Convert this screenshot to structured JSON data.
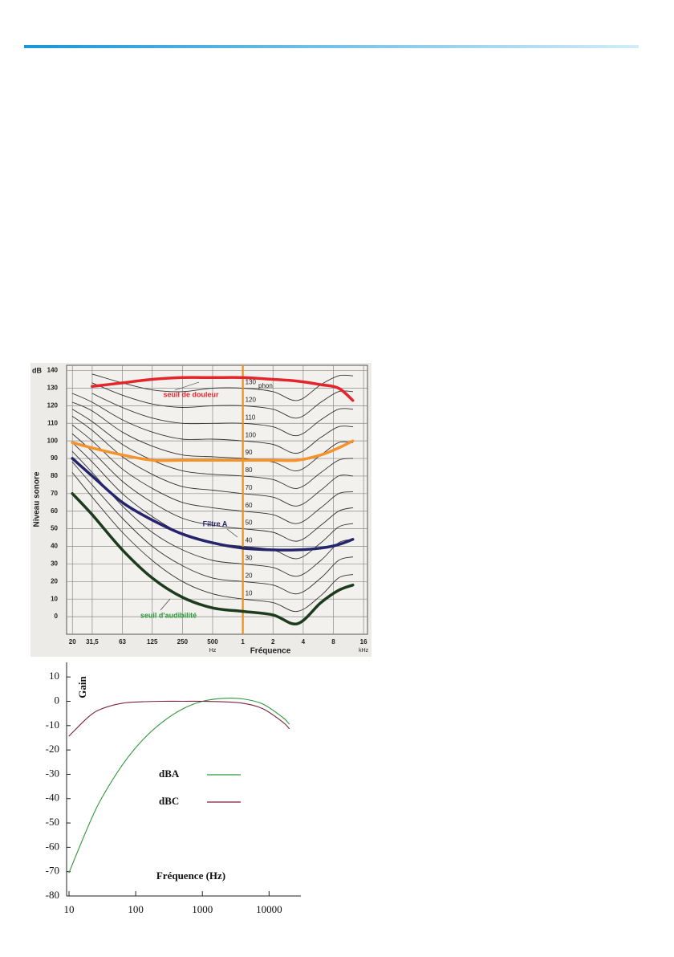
{
  "chart_data": [
    {
      "type": "line",
      "log_x": true,
      "ylabel": "Niveau sonore",
      "yunit": "dB",
      "xlabel": "Fréquence",
      "hz_label": "Hz",
      "khz_label": "kHz",
      "xlim": [
        17.5,
        17500
      ],
      "ylim": [
        -10,
        143
      ],
      "yticks": [
        0,
        10,
        20,
        30,
        40,
        50,
        60,
        70,
        80,
        90,
        100,
        110,
        120,
        130,
        140
      ],
      "xticks": [
        20,
        {
          "value": 31.5,
          "label": "31,5"
        },
        63,
        125,
        250,
        500,
        {
          "value": 1000,
          "label": "1"
        },
        {
          "value": 2000,
          "label": "2"
        },
        {
          "value": 4000,
          "label": "4"
        },
        {
          "value": 8000,
          "label": "8"
        },
        {
          "value": 16000,
          "label": "16"
        }
      ],
      "grid": true,
      "vline": 1000,
      "vline_color": "#e8901e",
      "unit_label": "phon",
      "x": [
        20,
        31.5,
        63,
        125,
        250,
        500,
        1000,
        2000,
        3500,
        6000,
        9000,
        12500
      ],
      "series": [
        {
          "name": "10",
          "color": "#333333",
          "values": [
            82,
            68,
            48,
            32,
            20,
            13,
            10,
            8,
            3,
            12,
            22,
            24
          ]
        },
        {
          "name": "20",
          "color": "#333333",
          "values": [
            88,
            75,
            56,
            40,
            29,
            22,
            20,
            18,
            13,
            22,
            32,
            34
          ]
        },
        {
          "name": "30",
          "color": "#333333",
          "values": [
            94,
            82,
            63,
            48,
            38,
            32,
            30,
            28,
            23,
            32,
            42,
            44
          ]
        },
        {
          "name": "40",
          "color": "#333333",
          "values": [
            99,
            88,
            70,
            57,
            47,
            42,
            40,
            38,
            33,
            42,
            51,
            53
          ]
        },
        {
          "name": "50",
          "color": "#333333",
          "values": [
            104,
            94,
            77,
            65,
            56,
            52,
            50,
            48,
            43,
            52,
            60,
            62
          ]
        },
        {
          "name": "60",
          "color": "#333333",
          "values": [
            109,
            100,
            84,
            73,
            65,
            62,
            60,
            58,
            53,
            62,
            70,
            71
          ]
        },
        {
          "name": "70",
          "color": "#333333",
          "values": [
            114,
            106,
            91,
            81,
            74,
            72,
            70,
            68,
            63,
            72,
            80,
            80
          ]
        },
        {
          "name": "80",
          "color": "#333333",
          "values": [
            118,
            111,
            98,
            89,
            83,
            81,
            80,
            78,
            73,
            82,
            89,
            90
          ]
        },
        {
          "name": "90",
          "color": "#333333",
          "values": [
            122,
            117,
            105,
            97,
            92,
            91,
            90,
            88,
            83,
            92,
            99,
            99
          ]
        },
        {
          "name": "100",
          "color": "#333333",
          "values": [
            127,
            122,
            112,
            105,
            101,
            101,
            100,
            98,
            93,
            102,
            108,
            108
          ]
        },
        {
          "name": "110",
          "color": "#333333",
          "values": [
            null,
            127,
            119,
            113,
            110,
            110,
            110,
            108,
            103,
            112,
            118,
            118
          ]
        },
        {
          "name": "120",
          "color": "#333333",
          "values": [
            null,
            133,
            126,
            121,
            119,
            120,
            120,
            118,
            113,
            122,
            128,
            128
          ]
        },
        {
          "name": "130",
          "color": "#333333",
          "values": [
            null,
            138,
            133,
            129,
            128,
            130,
            130,
            128,
            123,
            132,
            137,
            137
          ]
        },
        {
          "name": "seuil de douleur",
          "color": "#e3262b",
          "values": [
            null,
            131,
            133,
            135,
            136,
            136,
            136,
            135,
            134,
            132,
            130,
            123
          ]
        },
        {
          "color": "#f5922a",
          "values": [
            99,
            96,
            92,
            89,
            89,
            89,
            89,
            89,
            89,
            92,
            96,
            100
          ]
        },
        {
          "name": "Filtre A",
          "color": "#25256e",
          "values": [
            90,
            80,
            65,
            55,
            47,
            42,
            39,
            38,
            38,
            39,
            41,
            44
          ]
        },
        {
          "name": "seuil d'audibilité",
          "color": "#1d3b1d",
          "label_color": "#2a9a3a",
          "values": [
            70,
            58,
            38,
            22,
            11,
            5,
            3,
            1,
            -4,
            8,
            15,
            18
          ]
        }
      ]
    },
    {
      "type": "line",
      "log_x": true,
      "ylabel": "Gain",
      "xlabel": "Fréquence (Hz)",
      "xlim": [
        10,
        30000
      ],
      "ylim": [
        -80,
        16
      ],
      "xticks": [
        10,
        100,
        1000,
        10000
      ],
      "yticks": [
        -80,
        -70,
        -60,
        -50,
        -40,
        -30,
        -20,
        -10,
        0,
        10
      ],
      "x": [
        10,
        20,
        31.5,
        63,
        125,
        250,
        500,
        1000,
        2000,
        4000,
        8000,
        16000,
        20000
      ],
      "series": [
        {
          "name": "dBA",
          "color": "#2e9a3a",
          "values": [
            -70.4,
            -50.5,
            -39.4,
            -26.2,
            -16.1,
            -8.6,
            -3.2,
            0,
            1.2,
            1.0,
            -1.1,
            -6.6,
            -9.3
          ]
        },
        {
          "name": "dBC",
          "color": "#7a1f3a",
          "values": [
            -14.3,
            -6.2,
            -3.0,
            -0.8,
            -0.2,
            0,
            0,
            0,
            -0.2,
            -0.8,
            -3.0,
            -8.5,
            -11.2
          ]
        }
      ]
    }
  ]
}
